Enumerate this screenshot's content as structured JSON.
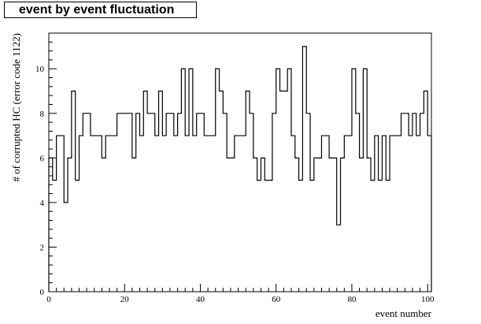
{
  "title": "event by event fluctuation",
  "chart_data": {
    "type": "histogram-step",
    "title": "event by event fluctuation",
    "xlabel": "event number",
    "ylabel": "# of corrupted HC (error code 1122)",
    "xlim": [
      0,
      101
    ],
    "ylim": [
      0,
      11.6
    ],
    "xticks": [
      0,
      20,
      40,
      60,
      80,
      100
    ],
    "yticks": [
      0,
      2,
      4,
      6,
      8,
      10
    ],
    "grid": false,
    "bin_width": 1,
    "series": [
      {
        "x_start": 0,
        "values": [
          6,
          5,
          7,
          7,
          4,
          6,
          9,
          5,
          7,
          8,
          8,
          7,
          7,
          7,
          6,
          7,
          7,
          7,
          8,
          8,
          8,
          8,
          6,
          8,
          7,
          9,
          8,
          8,
          7,
          9,
          7,
          8,
          8,
          7,
          8,
          10,
          7,
          10,
          7,
          8,
          8,
          7,
          7,
          7,
          10,
          9,
          8,
          6,
          6,
          7,
          7,
          7,
          9,
          8,
          6,
          5,
          6,
          5,
          5,
          8,
          10,
          9,
          9,
          10,
          7,
          6,
          5,
          11,
          8,
          5,
          6,
          6,
          7,
          7,
          6,
          6,
          3,
          6,
          7,
          7,
          10,
          8,
          6,
          10,
          6,
          5,
          7,
          5,
          7,
          5,
          7,
          7,
          7,
          8,
          8,
          7,
          8,
          7,
          8,
          9,
          7
        ]
      }
    ]
  }
}
